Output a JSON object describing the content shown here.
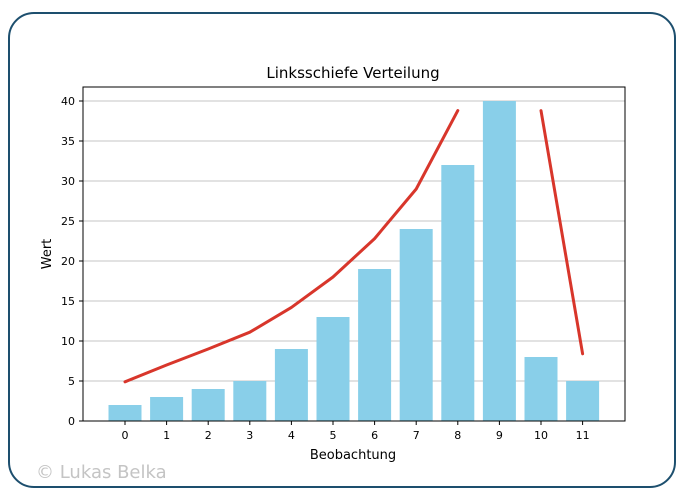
{
  "watermark": "© Lukas Belka",
  "colors": {
    "bar": "#89CFE9",
    "curve": "#D8362B",
    "frame": "#1d4f6e",
    "grid": "#b0b0b0"
  },
  "chart_data": {
    "type": "bar",
    "title": "Linksschiefe Verteilung",
    "xlabel": "Beobachtung",
    "ylabel": "Wert",
    "categories": [
      "0",
      "1",
      "2",
      "3",
      "4",
      "5",
      "6",
      "7",
      "8",
      "9",
      "10",
      "11"
    ],
    "values": [
      2,
      3,
      4,
      5,
      9,
      13,
      19,
      24,
      32,
      40,
      8,
      5
    ],
    "ylim": [
      0,
      40
    ],
    "yticks": [
      0,
      5,
      10,
      15,
      20,
      25,
      30,
      35,
      40
    ],
    "grid": "horizontal",
    "overlay_curves": [
      {
        "x": [
          0,
          1,
          2,
          3,
          4,
          5,
          6,
          7,
          8
        ],
        "y": [
          4.9,
          7,
          9,
          11.1,
          14.2,
          18,
          22.8,
          29,
          38.8
        ]
      },
      {
        "x": [
          10,
          11
        ],
        "y": [
          38.8,
          8.4
        ]
      }
    ]
  }
}
